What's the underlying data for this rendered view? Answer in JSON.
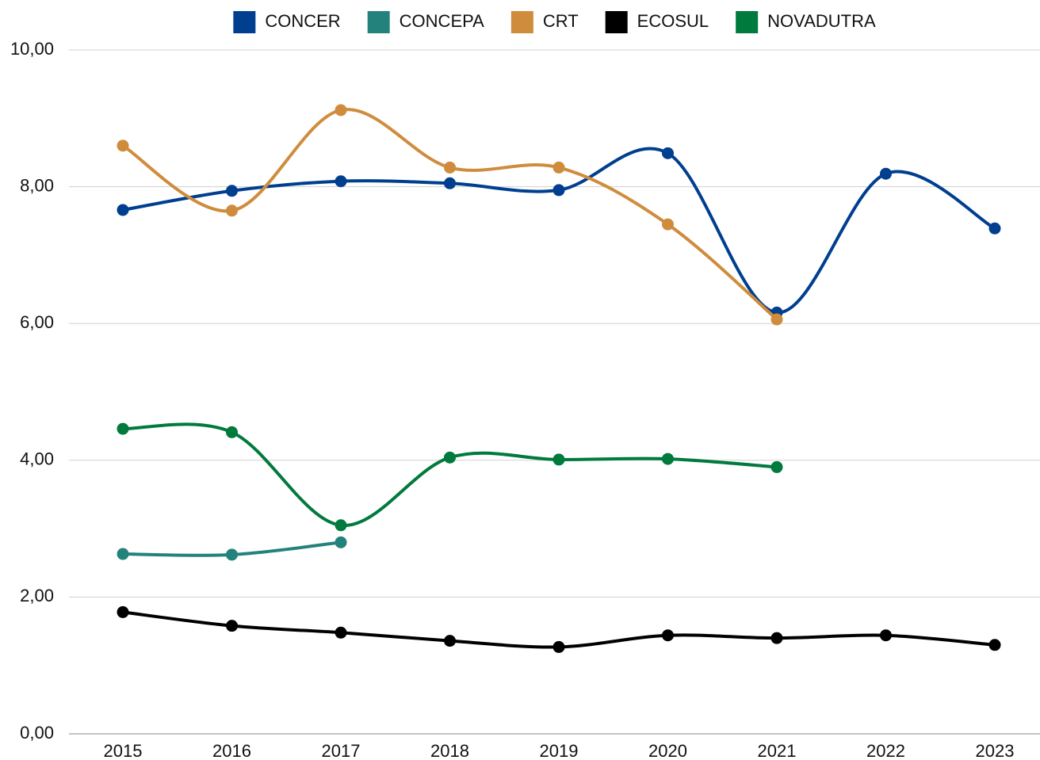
{
  "chart_data": {
    "type": "line",
    "categories": [
      "2015",
      "2016",
      "2017",
      "2018",
      "2019",
      "2020",
      "2021",
      "2022",
      "2023"
    ],
    "series": [
      {
        "name": "CONCER",
        "color": "#003f8f",
        "values": [
          7.66,
          7.94,
          8.08,
          8.05,
          7.95,
          8.49,
          6.16,
          8.19,
          7.39
        ]
      },
      {
        "name": "CONCEPA",
        "color": "#23827b",
        "values": [
          2.63,
          2.62,
          2.8,
          null,
          null,
          null,
          null,
          null,
          null
        ]
      },
      {
        "name": "CRT",
        "color": "#cf8c3d",
        "values": [
          8.6,
          7.65,
          9.12,
          8.28,
          8.28,
          7.45,
          6.06,
          null,
          null
        ]
      },
      {
        "name": "ECOSUL",
        "color": "#000000",
        "values": [
          1.78,
          1.58,
          1.48,
          1.36,
          1.27,
          1.44,
          1.4,
          1.44,
          1.3
        ]
      },
      {
        "name": "NOVADUTRA",
        "color": "#007a3d",
        "values": [
          4.46,
          4.41,
          3.05,
          4.04,
          4.01,
          4.02,
          3.9,
          null,
          null
        ]
      }
    ],
    "ylim": [
      0,
      10
    ],
    "yticks": [
      {
        "value": 0,
        "label": "0,00"
      },
      {
        "value": 2,
        "label": "2,00"
      },
      {
        "value": 4,
        "label": "4,00"
      },
      {
        "value": 6,
        "label": "6,00"
      },
      {
        "value": 8,
        "label": "8,00"
      },
      {
        "value": 10,
        "label": "10,00"
      }
    ],
    "grid": true,
    "legend": "top"
  }
}
